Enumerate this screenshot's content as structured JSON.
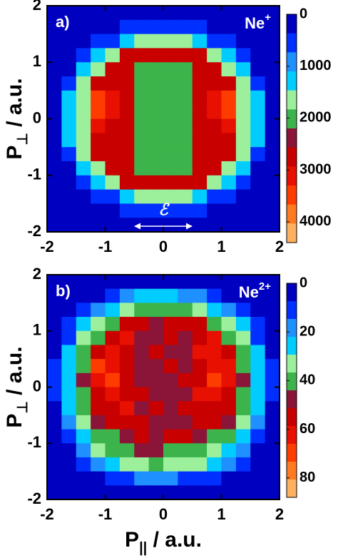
{
  "chart_data": [
    {
      "type": "heatmap",
      "panel_label": "a)",
      "ion": "Ne",
      "ion_charge": "+",
      "ylabel": "P",
      "ylabel_sub": "⊥",
      "ylabel_unit": " / a.u.",
      "annotation": "ℰ",
      "xlim": [
        -2,
        2
      ],
      "ylim": [
        -2,
        2
      ],
      "xticks": [
        -2,
        -1,
        0,
        1,
        2
      ],
      "yticks": [
        -2,
        -1,
        0,
        1,
        2
      ],
      "x": [
        -1.875,
        -1.625,
        -1.375,
        -1.125,
        -0.875,
        -0.625,
        -0.375,
        -0.125,
        0.125,
        0.375,
        0.625,
        0.875,
        1.125,
        1.375,
        1.625,
        1.875
      ],
      "y": [
        1.875,
        1.625,
        1.375,
        1.125,
        0.875,
        0.625,
        0.375,
        0.125,
        -0.125,
        -0.375,
        -0.625,
        -0.875,
        -1.125,
        -1.375,
        -1.625,
        -1.875
      ],
      "clim": [
        0,
        4400
      ],
      "cticks": [
        0,
        1000,
        2000,
        3000,
        4000
      ],
      "colormap": [
        "#0000c0",
        "#0030ff",
        "#1e90ff",
        "#00ccff",
        "#9cf09c",
        "#3cb44b",
        "#8b1538",
        "#c80000",
        "#e81000",
        "#ff3c00",
        "#ff7a20",
        "#ffb060"
      ],
      "z": [
        [
          60,
          60,
          60,
          60,
          60,
          60,
          60,
          60,
          60,
          60,
          60,
          60,
          60,
          60,
          60,
          60
        ],
        [
          60,
          60,
          60,
          60,
          250,
          500,
          500,
          500,
          500,
          500,
          500,
          250,
          60,
          60,
          60,
          60
        ],
        [
          60,
          60,
          60,
          500,
          500,
          1100,
          1600,
          1600,
          1600,
          1600,
          1100,
          500,
          500,
          60,
          60,
          60
        ],
        [
          60,
          60,
          500,
          1100,
          1600,
          2800,
          2800,
          2800,
          2800,
          2800,
          2800,
          1600,
          1100,
          500,
          60,
          60
        ],
        [
          60,
          250,
          1100,
          1600,
          2800,
          2800,
          2000,
          2000,
          2000,
          2000,
          2800,
          2800,
          1600,
          1100,
          250,
          60
        ],
        [
          60,
          500,
          1600,
          2800,
          2800,
          2800,
          2000,
          2000,
          2000,
          2000,
          2800,
          2800,
          2800,
          1600,
          500,
          60
        ],
        [
          250,
          1100,
          1600,
          3500,
          3100,
          2800,
          2000,
          2000,
          2000,
          2000,
          2800,
          3100,
          3500,
          1600,
          1100,
          250
        ],
        [
          250,
          1100,
          1600,
          3500,
          3200,
          2800,
          2000,
          2000,
          2000,
          2000,
          2800,
          3200,
          3500,
          1600,
          1100,
          250
        ],
        [
          250,
          1100,
          1600,
          3000,
          2900,
          2800,
          2000,
          2000,
          2000,
          2000,
          2800,
          2900,
          3000,
          1600,
          1100,
          250
        ],
        [
          250,
          1100,
          1600,
          2800,
          2800,
          2800,
          2000,
          2000,
          2000,
          2000,
          2800,
          2800,
          2800,
          1600,
          1100,
          250
        ],
        [
          60,
          500,
          1600,
          2800,
          2800,
          2800,
          2000,
          2000,
          2000,
          2000,
          2800,
          2800,
          2800,
          1600,
          500,
          60
        ],
        [
          60,
          250,
          1100,
          1600,
          2800,
          2800,
          2000,
          2000,
          2000,
          2000,
          2800,
          2800,
          1600,
          1100,
          250,
          60
        ],
        [
          60,
          60,
          500,
          1100,
          1600,
          2800,
          2800,
          2800,
          2800,
          2800,
          2800,
          1600,
          1100,
          500,
          60,
          60
        ],
        [
          60,
          60,
          60,
          500,
          500,
          1100,
          1600,
          1600,
          1600,
          1600,
          1100,
          500,
          500,
          60,
          60,
          60
        ],
        [
          60,
          60,
          60,
          60,
          250,
          500,
          500,
          500,
          500,
          500,
          500,
          250,
          60,
          60,
          60,
          60
        ],
        [
          60,
          60,
          60,
          60,
          60,
          60,
          60,
          60,
          60,
          60,
          60,
          60,
          60,
          60,
          60,
          60
        ]
      ]
    },
    {
      "type": "heatmap",
      "panel_label": "b)",
      "ion": "Ne",
      "ion_charge": "2+",
      "ylabel": "P",
      "ylabel_sub": "⊥",
      "ylabel_unit": " / a.u.",
      "xlabel": "P",
      "xlabel_sub": "||",
      "xlabel_unit": " / a.u.",
      "xlim": [
        -2,
        2
      ],
      "ylim": [
        -2,
        2
      ],
      "xticks": [
        -2,
        -1,
        0,
        1,
        2
      ],
      "yticks": [
        -2,
        -1,
        0,
        1,
        2
      ],
      "x": [
        -1.875,
        -1.625,
        -1.375,
        -1.125,
        -0.875,
        -0.625,
        -0.375,
        -0.125,
        0.125,
        0.375,
        0.625,
        0.875,
        1.125,
        1.375,
        1.625,
        1.875
      ],
      "y": [
        1.875,
        1.625,
        1.375,
        1.125,
        0.875,
        0.625,
        0.375,
        0.125,
        -0.125,
        -0.375,
        -0.625,
        -0.875,
        -1.125,
        -1.375,
        -1.625,
        -1.875
      ],
      "clim": [
        0,
        88
      ],
      "cticks": [
        0,
        20,
        40,
        60,
        80
      ],
      "colormap": [
        "#0000c0",
        "#0030ff",
        "#1e90ff",
        "#00ccff",
        "#9cf09c",
        "#3cb44b",
        "#8b1538",
        "#c80000",
        "#e81000",
        "#ff3c00",
        "#ff7a20",
        "#ffb060"
      ],
      "z": [
        [
          1,
          1,
          2,
          2,
          3,
          4,
          5,
          5,
          5,
          5,
          4,
          3,
          2,
          2,
          1,
          1
        ],
        [
          1,
          2,
          3,
          6,
          12,
          20,
          22,
          24,
          22,
          21,
          20,
          12,
          6,
          3,
          2,
          1
        ],
        [
          2,
          3,
          8,
          20,
          28,
          35,
          40,
          42,
          41,
          40,
          36,
          28,
          20,
          8,
          3,
          2
        ],
        [
          3,
          8,
          22,
          33,
          40,
          52,
          56,
          50,
          54,
          57,
          52,
          42,
          33,
          22,
          8,
          3
        ],
        [
          4,
          14,
          32,
          42,
          57,
          60,
          50,
          47,
          52,
          48,
          58,
          60,
          42,
          32,
          14,
          4
        ],
        [
          6,
          22,
          40,
          58,
          62,
          56,
          48,
          55,
          46,
          50,
          61,
          63,
          58,
          40,
          22,
          6
        ],
        [
          10,
          28,
          42,
          66,
          60,
          58,
          50,
          46,
          52,
          49,
          58,
          62,
          64,
          42,
          28,
          10
        ],
        [
          10,
          28,
          44,
          62,
          68,
          55,
          47,
          51,
          45,
          53,
          56,
          66,
          60,
          44,
          28,
          10
        ],
        [
          9,
          27,
          41,
          58,
          63,
          57,
          52,
          46,
          50,
          47,
          60,
          62,
          57,
          40,
          26,
          9
        ],
        [
          7,
          24,
          40,
          56,
          58,
          60,
          49,
          53,
          48,
          52,
          55,
          58,
          54,
          40,
          23,
          7
        ],
        [
          5,
          18,
          36,
          44,
          56,
          54,
          52,
          47,
          51,
          46,
          57,
          53,
          44,
          36,
          18,
          5
        ],
        [
          3,
          11,
          28,
          38,
          42,
          48,
          54,
          50,
          55,
          52,
          47,
          40,
          37,
          28,
          11,
          3
        ],
        [
          2,
          5,
          18,
          30,
          38,
          42,
          44,
          46,
          43,
          42,
          40,
          36,
          29,
          18,
          5,
          2
        ],
        [
          1,
          3,
          8,
          18,
          26,
          32,
          36,
          38,
          36,
          34,
          30,
          25,
          17,
          8,
          3,
          1
        ],
        [
          1,
          1,
          3,
          6,
          10,
          14,
          16,
          17,
          16,
          14,
          12,
          9,
          5,
          3,
          1,
          1
        ],
        [
          1,
          1,
          1,
          2,
          2,
          3,
          4,
          4,
          4,
          3,
          3,
          2,
          2,
          1,
          1,
          1
        ]
      ]
    }
  ]
}
